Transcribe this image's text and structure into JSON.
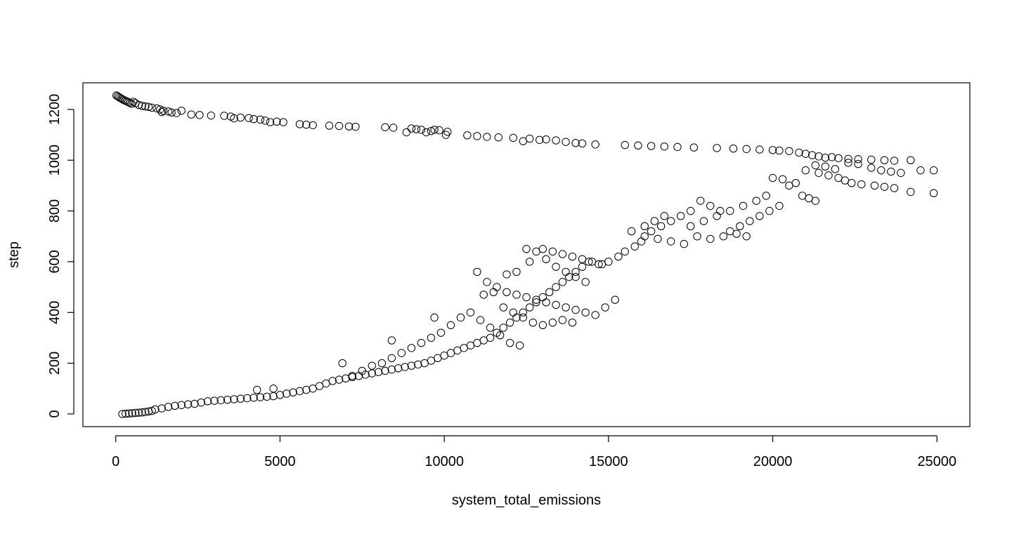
{
  "chart_data": {
    "type": "scatter",
    "title": "",
    "xlabel": "system_total_emissions",
    "ylabel": "step",
    "xlim": [
      -1000,
      26000
    ],
    "ylim": [
      -50,
      1305
    ],
    "x_ticks": [
      0,
      5000,
      10000,
      15000,
      20000,
      25000
    ],
    "y_ticks": [
      0,
      200,
      400,
      600,
      800,
      1000,
      1200
    ],
    "grid": false,
    "legend": "none",
    "marker": "open-circle",
    "series": [
      {
        "values_description_free": true,
        "points": [
          [
            20,
            1255
          ],
          [
            60,
            1252
          ],
          [
            100,
            1248
          ],
          [
            140,
            1245
          ],
          [
            180,
            1242
          ],
          [
            230,
            1238
          ],
          [
            280,
            1235
          ],
          [
            330,
            1232
          ],
          [
            380,
            1229
          ],
          [
            430,
            1226
          ],
          [
            480,
            1222
          ],
          [
            540,
            1230
          ],
          [
            600,
            1225
          ],
          [
            700,
            1218
          ],
          [
            800,
            1214
          ],
          [
            900,
            1212
          ],
          [
            1000,
            1210
          ],
          [
            1100,
            1207
          ],
          [
            1250,
            1204
          ],
          [
            1350,
            1200
          ],
          [
            1400,
            1190
          ],
          [
            1450,
            1195
          ],
          [
            1600,
            1192
          ],
          [
            1700,
            1188
          ],
          [
            1850,
            1186
          ],
          [
            2000,
            1195
          ],
          [
            2300,
            1180
          ],
          [
            2550,
            1178
          ],
          [
            2900,
            1176
          ],
          [
            3300,
            1175
          ],
          [
            3500,
            1172
          ],
          [
            3600,
            1165
          ],
          [
            3800,
            1168
          ],
          [
            4050,
            1166
          ],
          [
            4200,
            1162
          ],
          [
            4400,
            1160
          ],
          [
            4550,
            1156
          ],
          [
            4700,
            1150
          ],
          [
            4900,
            1152
          ],
          [
            5100,
            1150
          ],
          [
            5600,
            1142
          ],
          [
            5800,
            1140
          ],
          [
            6000,
            1138
          ],
          [
            6500,
            1136
          ],
          [
            6800,
            1135
          ],
          [
            7100,
            1133
          ],
          [
            7300,
            1132
          ],
          [
            8200,
            1130
          ],
          [
            8450,
            1128
          ],
          [
            8850,
            1110
          ],
          [
            9000,
            1125
          ],
          [
            9150,
            1122
          ],
          [
            9300,
            1120
          ],
          [
            9450,
            1110
          ],
          [
            9600,
            1115
          ],
          [
            9700,
            1120
          ],
          [
            9850,
            1118
          ],
          [
            10050,
            1100
          ],
          [
            10100,
            1112
          ],
          [
            10700,
            1098
          ],
          [
            11000,
            1095
          ],
          [
            11300,
            1092
          ],
          [
            11650,
            1090
          ],
          [
            12100,
            1088
          ],
          [
            12400,
            1075
          ],
          [
            12600,
            1085
          ],
          [
            12900,
            1080
          ],
          [
            13100,
            1082
          ],
          [
            13400,
            1078
          ],
          [
            13700,
            1072
          ],
          [
            14000,
            1068
          ],
          [
            14200,
            1066
          ],
          [
            14600,
            1062
          ],
          [
            15500,
            1060
          ],
          [
            15900,
            1058
          ],
          [
            16300,
            1056
          ],
          [
            16700,
            1054
          ],
          [
            17100,
            1052
          ],
          [
            17600,
            1050
          ],
          [
            18300,
            1048
          ],
          [
            18800,
            1046
          ],
          [
            19200,
            1044
          ],
          [
            19600,
            1042
          ],
          [
            20000,
            1040
          ],
          [
            20200,
            1038
          ],
          [
            20500,
            1036
          ],
          [
            20800,
            1030
          ],
          [
            21000,
            1025
          ],
          [
            21200,
            1020
          ],
          [
            21400,
            1015
          ],
          [
            21600,
            1010
          ],
          [
            21800,
            1012
          ],
          [
            22000,
            1008
          ],
          [
            22300,
            1005
          ],
          [
            22600,
            1004
          ],
          [
            23000,
            1002
          ],
          [
            23400,
            1000
          ],
          [
            23700,
            998
          ],
          [
            24200,
            1000
          ],
          [
            24500,
            960
          ],
          [
            24900,
            960
          ],
          [
            21000,
            960
          ],
          [
            21400,
            950
          ],
          [
            21700,
            940
          ],
          [
            22000,
            930
          ],
          [
            22200,
            920
          ],
          [
            22400,
            910
          ],
          [
            22700,
            905
          ],
          [
            23100,
            900
          ],
          [
            23400,
            895
          ],
          [
            23700,
            890
          ],
          [
            24200,
            875
          ],
          [
            24900,
            870
          ],
          [
            21300,
            980
          ],
          [
            21600,
            975
          ],
          [
            21900,
            965
          ],
          [
            22300,
            990
          ],
          [
            22600,
            985
          ],
          [
            23000,
            970
          ],
          [
            23300,
            960
          ],
          [
            23600,
            955
          ],
          [
            23900,
            950
          ],
          [
            20000,
            930
          ],
          [
            20300,
            925
          ],
          [
            20500,
            900
          ],
          [
            20700,
            910
          ],
          [
            20900,
            860
          ],
          [
            21100,
            850
          ],
          [
            21300,
            840
          ],
          [
            20200,
            820
          ],
          [
            19900,
            800
          ],
          [
            19600,
            780
          ],
          [
            19300,
            760
          ],
          [
            19000,
            740
          ],
          [
            19200,
            700
          ],
          [
            18700,
            720
          ],
          [
            18400,
            800
          ],
          [
            18100,
            820
          ],
          [
            17800,
            840
          ],
          [
            17500,
            800
          ],
          [
            17200,
            780
          ],
          [
            16900,
            760
          ],
          [
            16600,
            740
          ],
          [
            16300,
            720
          ],
          [
            16000,
            680
          ],
          [
            15800,
            660
          ],
          [
            15500,
            640
          ],
          [
            15300,
            620
          ],
          [
            15000,
            600
          ],
          [
            14700,
            590
          ],
          [
            14400,
            600
          ],
          [
            14200,
            580
          ],
          [
            14000,
            560
          ],
          [
            13800,
            540
          ],
          [
            13600,
            520
          ],
          [
            13400,
            500
          ],
          [
            13200,
            480
          ],
          [
            13000,
            460
          ],
          [
            12800,
            440
          ],
          [
            12600,
            420
          ],
          [
            12400,
            400
          ],
          [
            12200,
            380
          ],
          [
            12000,
            360
          ],
          [
            11800,
            340
          ],
          [
            11600,
            320
          ],
          [
            11400,
            300
          ],
          [
            11200,
            290
          ],
          [
            11000,
            280
          ],
          [
            10800,
            270
          ],
          [
            10600,
            260
          ],
          [
            10400,
            250
          ],
          [
            10200,
            240
          ],
          [
            10000,
            230
          ],
          [
            9800,
            220
          ],
          [
            9600,
            210
          ],
          [
            9400,
            200
          ],
          [
            9200,
            195
          ],
          [
            9000,
            190
          ],
          [
            8800,
            185
          ],
          [
            8600,
            180
          ],
          [
            8400,
            175
          ],
          [
            8200,
            170
          ],
          [
            8000,
            165
          ],
          [
            7800,
            160
          ],
          [
            7600,
            155
          ],
          [
            7400,
            150
          ],
          [
            7200,
            145
          ],
          [
            7000,
            140
          ],
          [
            6800,
            135
          ],
          [
            6600,
            130
          ],
          [
            6400,
            120
          ],
          [
            6200,
            110
          ],
          [
            6000,
            100
          ],
          [
            5800,
            95
          ],
          [
            5600,
            90
          ],
          [
            5400,
            85
          ],
          [
            5200,
            80
          ],
          [
            5000,
            75
          ],
          [
            4800,
            70
          ],
          [
            4600,
            68
          ],
          [
            4400,
            66
          ],
          [
            4200,
            64
          ],
          [
            4000,
            62
          ],
          [
            3800,
            60
          ],
          [
            3600,
            58
          ],
          [
            3400,
            56
          ],
          [
            3200,
            54
          ],
          [
            3000,
            52
          ],
          [
            2800,
            50
          ],
          [
            2600,
            45
          ],
          [
            2400,
            40
          ],
          [
            2200,
            38
          ],
          [
            2000,
            35
          ],
          [
            1800,
            32
          ],
          [
            1600,
            28
          ],
          [
            1400,
            22
          ],
          [
            1200,
            18
          ],
          [
            1100,
            12
          ],
          [
            1000,
            10
          ],
          [
            900,
            8
          ],
          [
            800,
            6
          ],
          [
            700,
            5
          ],
          [
            600,
            4
          ],
          [
            500,
            3
          ],
          [
            400,
            2
          ],
          [
            300,
            1
          ],
          [
            200,
            0
          ],
          [
            11000,
            560
          ],
          [
            11300,
            520
          ],
          [
            11600,
            500
          ],
          [
            11900,
            480
          ],
          [
            12200,
            470
          ],
          [
            12500,
            460
          ],
          [
            12800,
            450
          ],
          [
            13100,
            440
          ],
          [
            13400,
            430
          ],
          [
            13700,
            420
          ],
          [
            14000,
            410
          ],
          [
            14300,
            400
          ],
          [
            14600,
            390
          ],
          [
            14900,
            420
          ],
          [
            15200,
            450
          ],
          [
            13000,
            650
          ],
          [
            13300,
            640
          ],
          [
            13600,
            630
          ],
          [
            13900,
            620
          ],
          [
            14200,
            610
          ],
          [
            14500,
            600
          ],
          [
            14800,
            590
          ],
          [
            12500,
            650
          ],
          [
            12800,
            640
          ],
          [
            13100,
            610
          ],
          [
            13400,
            580
          ],
          [
            13700,
            560
          ],
          [
            14000,
            540
          ],
          [
            14300,
            520
          ],
          [
            11800,
            420
          ],
          [
            12100,
            400
          ],
          [
            12400,
            380
          ],
          [
            12700,
            360
          ],
          [
            13000,
            350
          ],
          [
            13300,
            360
          ],
          [
            13600,
            370
          ],
          [
            13900,
            360
          ],
          [
            11500,
            480
          ],
          [
            11200,
            470
          ],
          [
            11900,
            550
          ],
          [
            12200,
            560
          ],
          [
            12600,
            600
          ],
          [
            15700,
            720
          ],
          [
            16100,
            700
          ],
          [
            16500,
            690
          ],
          [
            16900,
            680
          ],
          [
            17300,
            670
          ],
          [
            17700,
            700
          ],
          [
            18100,
            690
          ],
          [
            18500,
            700
          ],
          [
            18900,
            710
          ],
          [
            17500,
            740
          ],
          [
            17900,
            760
          ],
          [
            18300,
            780
          ],
          [
            18700,
            800
          ],
          [
            19100,
            820
          ],
          [
            19500,
            840
          ],
          [
            19800,
            860
          ],
          [
            16700,
            780
          ],
          [
            16400,
            760
          ],
          [
            16100,
            740
          ],
          [
            10500,
            380
          ],
          [
            10200,
            350
          ],
          [
            9900,
            320
          ],
          [
            9600,
            300
          ],
          [
            9300,
            280
          ],
          [
            9000,
            260
          ],
          [
            8700,
            240
          ],
          [
            8400,
            220
          ],
          [
            8100,
            200
          ],
          [
            7800,
            190
          ],
          [
            7500,
            170
          ],
          [
            7200,
            150
          ],
          [
            10800,
            400
          ],
          [
            11100,
            370
          ],
          [
            11400,
            340
          ],
          [
            11700,
            310
          ],
          [
            12000,
            280
          ],
          [
            12300,
            270
          ],
          [
            9700,
            380
          ],
          [
            8400,
            290
          ],
          [
            6900,
            200
          ],
          [
            4300,
            95
          ],
          [
            4800,
            100
          ]
        ]
      }
    ]
  }
}
